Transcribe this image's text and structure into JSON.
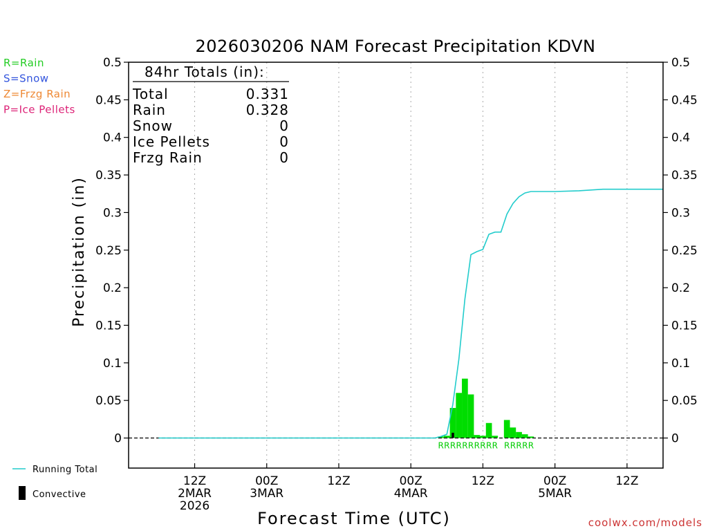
{
  "chart_data": {
    "type": "bar",
    "title": "2026030206 NAM Forecast Precipitation KDVN",
    "xlabel": "Forecast Time (UTC)",
    "ylabel": "Precipitation (in)",
    "ylim": [
      -0.04,
      0.5
    ],
    "y_ticks": [
      0,
      0.05,
      0.1,
      0.15,
      0.2,
      0.25,
      0.3,
      0.35,
      0.4,
      0.45,
      0.5
    ],
    "y_tick_labels": [
      "0",
      "0.05",
      "0.1",
      "0.15",
      "0.2",
      "0.25",
      "0.3",
      "0.35",
      "0.4",
      "0.45",
      "0.5"
    ],
    "x_range_hours": [
      -5,
      84
    ],
    "x_unit": "forecast hour",
    "x_ticks": [
      {
        "hour": 6,
        "lines": [
          "12Z",
          "2MAR",
          "2026"
        ]
      },
      {
        "hour": 18,
        "lines": [
          "00Z",
          "3MAR"
        ]
      },
      {
        "hour": 30,
        "lines": [
          "12Z"
        ]
      },
      {
        "hour": 42,
        "lines": [
          "00Z",
          "4MAR"
        ]
      },
      {
        "hour": 54,
        "lines": [
          "12Z"
        ]
      },
      {
        "hour": 66,
        "lines": [
          "00Z",
          "5MAR"
        ]
      },
      {
        "hour": 78,
        "lines": [
          "12Z"
        ]
      }
    ],
    "totals": {
      "header": "84hr Totals (in):",
      "rows": [
        {
          "label": "Total",
          "value": "0.331"
        },
        {
          "label": "Rain",
          "value": "0.328"
        },
        {
          "label": "Snow",
          "value": "0"
        },
        {
          "label": "Ice Pellets",
          "value": "0"
        },
        {
          "label": "Frzg Rain",
          "value": "0"
        }
      ]
    },
    "type_legend": [
      {
        "text": "R=Rain",
        "color": "#22cc22"
      },
      {
        "text": "S=Snow",
        "color": "#3355dd"
      },
      {
        "text": "Z=Frzg Rain",
        "color": "#ee8833"
      },
      {
        "text": "P=Ice Pellets",
        "color": "#dd2277"
      }
    ],
    "series": [
      {
        "name": "Hourly Precipitation",
        "color": "#00dd00",
        "hours": [
          47,
          48,
          49,
          50,
          51,
          52,
          53,
          54,
          55,
          56,
          57,
          58,
          59,
          60,
          61,
          62,
          63
        ],
        "values": [
          0.002,
          0.003,
          0.04,
          0.06,
          0.079,
          0.058,
          0.004,
          0.003,
          0.02,
          0.003,
          0,
          0.024,
          0.014,
          0.008,
          0.005,
          0.002,
          0
        ],
        "type_code": [
          "R",
          "R",
          "R",
          "R",
          "R",
          "R",
          "R",
          "R",
          "R",
          "R",
          "",
          "R",
          "R",
          "R",
          "R",
          "R",
          ""
        ]
      },
      {
        "name": "Convective",
        "color": "#000000",
        "hours": [
          49
        ],
        "values": [
          0.007
        ]
      },
      {
        "name": "Running Total",
        "color": "#22cccc",
        "hours": [
          0,
          46,
          47,
          48,
          49,
          50,
          51,
          52,
          53,
          54,
          55,
          56,
          57,
          58,
          59,
          60,
          61,
          62,
          63,
          66,
          70,
          74,
          84
        ],
        "values": [
          0,
          0,
          0.002,
          0.005,
          0.045,
          0.105,
          0.185,
          0.244,
          0.248,
          0.251,
          0.271,
          0.274,
          0.274,
          0.298,
          0.312,
          0.321,
          0.326,
          0.328,
          0.328,
          0.328,
          0.329,
          0.331,
          0.331
        ]
      }
    ],
    "legend": [
      {
        "name": "Running Total",
        "marker": "line",
        "color": "#22cccc"
      },
      {
        "name": "Convective",
        "marker": "bar",
        "color": "#000000"
      }
    ]
  },
  "credit": "coolwx.com/models"
}
